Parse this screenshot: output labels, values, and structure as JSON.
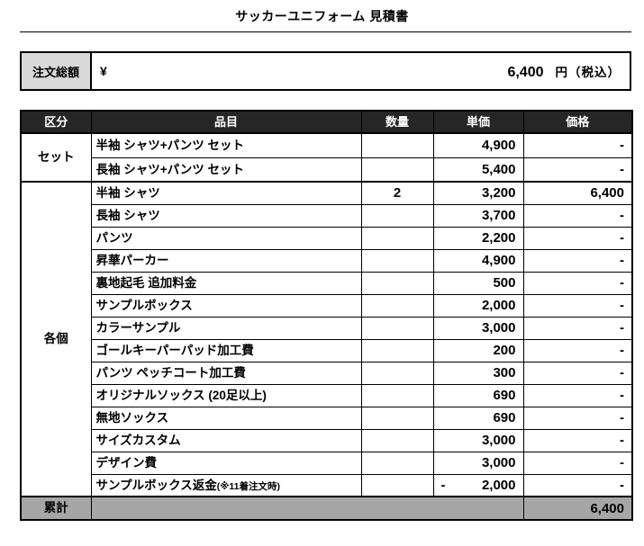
{
  "title": "サッカーユニフォーム 見積書",
  "order_total": {
    "label": "注文総額",
    "currency": "¥",
    "amount": "6,400",
    "unit": "円（税込）"
  },
  "table": {
    "headers": {
      "category": "区分",
      "item": "品目",
      "qty": "数量",
      "unit_price": "単価",
      "price": "価格"
    },
    "sections": [
      {
        "label": "セット",
        "rows": [
          {
            "item": "半袖 シャツ+パンツ セット",
            "qty": "",
            "unit_price": "4,900",
            "price": "-"
          },
          {
            "item": "長袖 シャツ+パンツ セット",
            "qty": "",
            "unit_price": "5,400",
            "price": "-"
          }
        ]
      },
      {
        "label": "各個",
        "rows": [
          {
            "item": "半袖 シャツ",
            "qty": "2",
            "unit_price": "3,200",
            "price": "6,400"
          },
          {
            "item": "長袖 シャツ",
            "qty": "",
            "unit_price": "3,700",
            "price": "-"
          },
          {
            "item": "パンツ",
            "qty": "",
            "unit_price": "2,200",
            "price": "-"
          },
          {
            "item": "昇華パーカー",
            "qty": "",
            "unit_price": "4,900",
            "price": "-"
          },
          {
            "item": "裏地起毛 追加料金",
            "qty": "",
            "unit_price": "500",
            "price": "-"
          },
          {
            "item": "サンプルボックス",
            "qty": "",
            "unit_price": "2,000",
            "price": "-"
          },
          {
            "item": "カラーサンプル",
            "qty": "",
            "unit_price": "3,000",
            "price": "-"
          },
          {
            "item": "ゴールキーパーパッド加工費",
            "qty": "",
            "unit_price": "200",
            "price": "-"
          },
          {
            "item": "パンツ ペッチコート加工費",
            "qty": "",
            "unit_price": "300",
            "price": "-"
          },
          {
            "item": "オリジナルソックス (20足以上)",
            "qty": "",
            "unit_price": "690",
            "price": "-"
          },
          {
            "item": "無地ソックス",
            "qty": "",
            "unit_price": "690",
            "price": "-"
          },
          {
            "item": "サイズカスタム",
            "qty": "",
            "unit_price": "3,000",
            "price": "-"
          },
          {
            "item": "デザイン費",
            "qty": "",
            "unit_price": "3,000",
            "price": "-"
          },
          {
            "item": "サンプルボックス返金",
            "item_note": "(※11着注文時)",
            "qty": "",
            "unit_price": "2,000",
            "unit_price_prefix": "-",
            "price": "-"
          }
        ]
      }
    ],
    "total": {
      "label": "累計",
      "price": "6,400"
    }
  },
  "colors": {
    "header_bg": "#262626",
    "header_text": "#ffffff",
    "category_bg": "#d9d9d9",
    "total_bg": "#a6a6a6",
    "border": "#000000"
  }
}
